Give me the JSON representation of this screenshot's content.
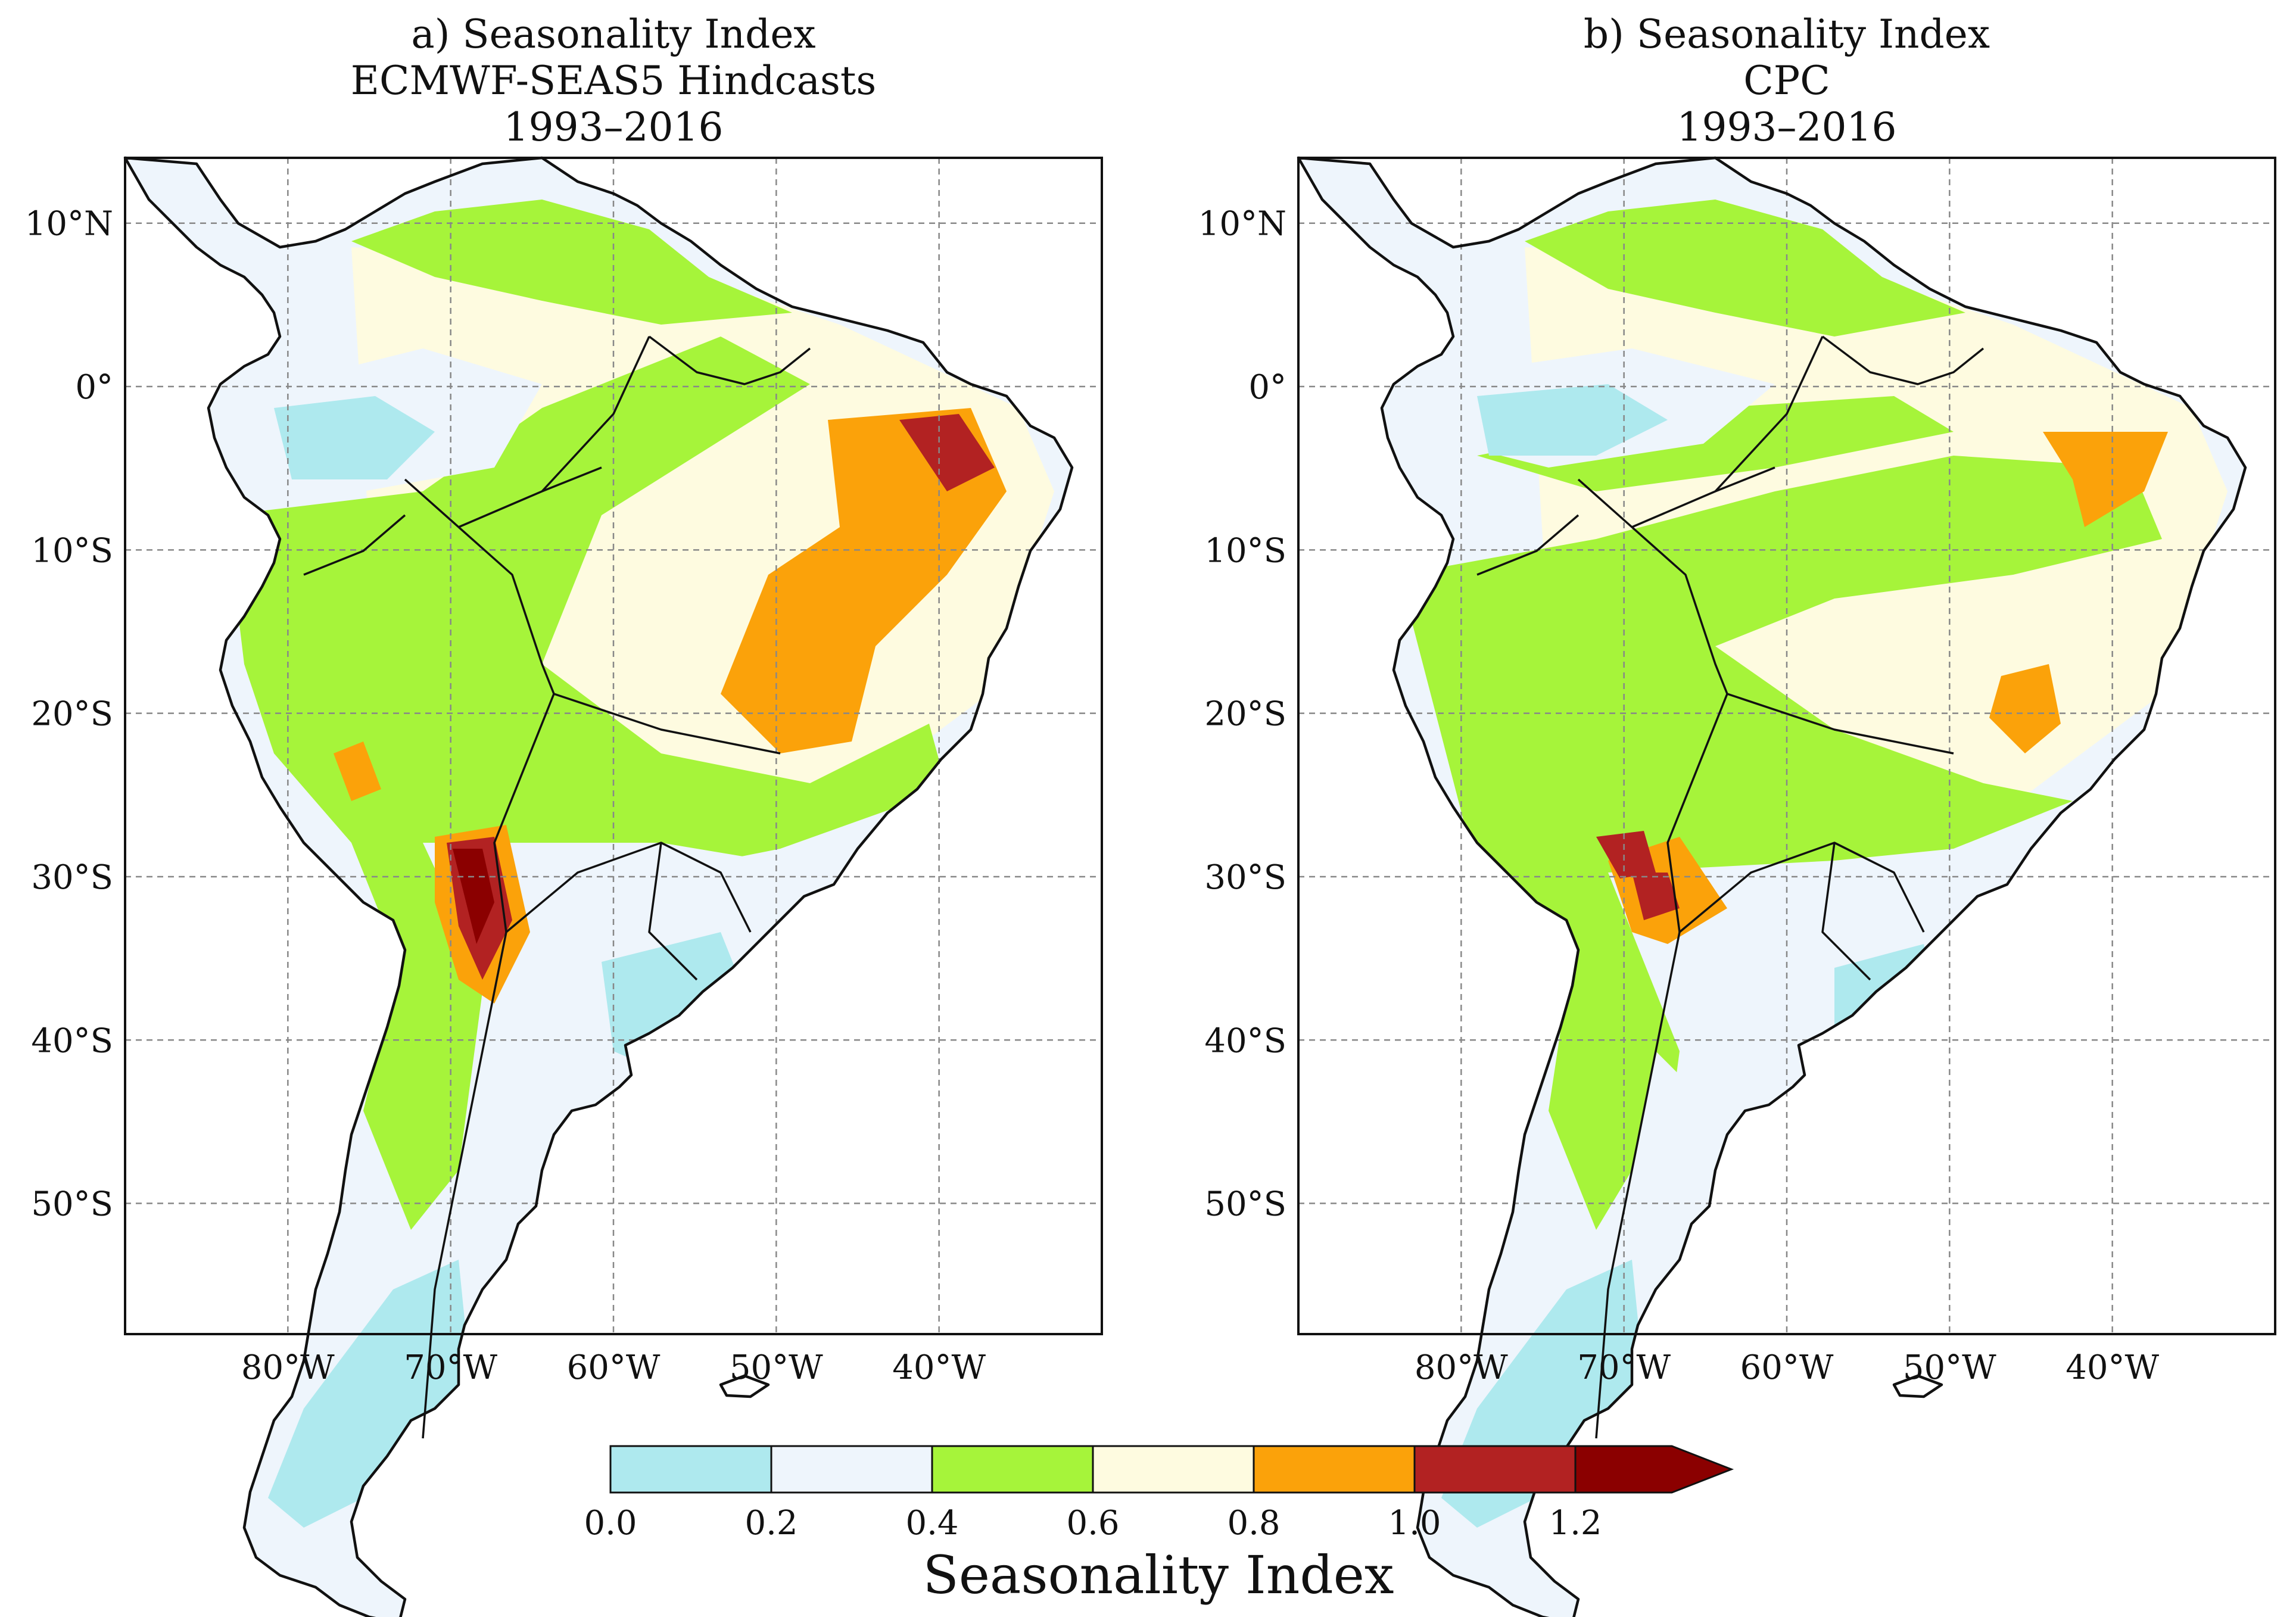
{
  "panels": [
    {
      "title_lines": [
        "a) Seasonality Index",
        "ECMWF-SEAS5 Hindcasts",
        "1993–2016"
      ]
    },
    {
      "title_lines": [
        "b) Seasonality Index",
        "CPC",
        "1993–2016"
      ]
    }
  ],
  "lat_ticks": [
    "10°N",
    "0°",
    "10°S",
    "20°S",
    "30°S",
    "40°S",
    "50°S"
  ],
  "lon_ticks": [
    "80°W",
    "70°W",
    "60°W",
    "50°W",
    "40°W"
  ],
  "colorbar": {
    "label": "Seasonality Index",
    "tick_labels": [
      "0.0",
      "0.2",
      "0.4",
      "0.6",
      "0.8",
      "1.0",
      "1.2"
    ],
    "bins": [
      {
        "range": [
          0.0,
          0.2
        ],
        "color": "#aee9ee"
      },
      {
        "range": [
          0.2,
          0.4
        ],
        "color": "#eef5fc"
      },
      {
        "range": [
          0.4,
          0.6
        ],
        "color": "#a6f43a"
      },
      {
        "range": [
          0.6,
          0.8
        ],
        "color": "#fefbe0"
      },
      {
        "range": [
          0.8,
          1.0
        ],
        "color": "#fba20a"
      },
      {
        "range": [
          1.0,
          1.2
        ],
        "color": "#b22222"
      },
      {
        "range": [
          1.2,
          1.4
        ],
        "color": "#8b0000",
        "extend": "max"
      }
    ]
  },
  "colors": {
    "ocean": "#ffffff",
    "coast": "#111111",
    "grid": "#888888"
  }
}
